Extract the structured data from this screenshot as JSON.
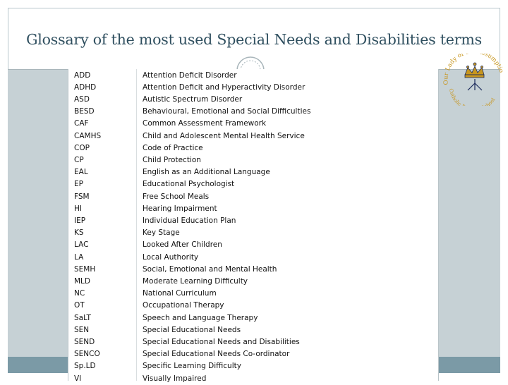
{
  "slide": {
    "title": "Glossary of the most used Special Needs and Disabilities terms"
  },
  "logo": {
    "text_top": "Our Lady of the Assumption",
    "text_bottom": "Catholic Primary School",
    "accent": "#c8961e"
  },
  "glossary": [
    {
      "abbr": "ADD",
      "term": "Attention Deficit Disorder"
    },
    {
      "abbr": "ADHD",
      "term": "Attention Deficit and Hyperactivity Disorder"
    },
    {
      "abbr": "ASD",
      "term": "Autistic Spectrum Disorder"
    },
    {
      "abbr": "BESD",
      "term": "Behavioural, Emotional and Social Difficulties"
    },
    {
      "abbr": "CAF",
      "term": "Common Assessment Framework"
    },
    {
      "abbr": "CAMHS",
      "term": "Child and Adolescent Mental Health Service"
    },
    {
      "abbr": "COP",
      "term": "Code of Practice"
    },
    {
      "abbr": "CP",
      "term": "Child Protection"
    },
    {
      "abbr": "EAL",
      "term": "English as an Additional Language"
    },
    {
      "abbr": "EP",
      "term": "Educational Psychologist"
    },
    {
      "abbr": "FSM",
      "term": "Free School Meals"
    },
    {
      "abbr": "HI",
      "term": "Hearing Impairment"
    },
    {
      "abbr": "IEP",
      "term": "Individual Education Plan"
    },
    {
      "abbr": "KS",
      "term": "Key Stage"
    },
    {
      "abbr": "LAC",
      "term": "Looked After Children"
    },
    {
      "abbr": "LA",
      "term": "Local Authority"
    },
    {
      "abbr": "SEMH",
      "term": "Social, Emotional and Mental Health"
    },
    {
      "abbr": "MLD",
      "term": "Moderate Learning Difficulty"
    },
    {
      "abbr": "NC",
      "term": "National Curriculum"
    },
    {
      "abbr": "OT",
      "term": "Occupational Therapy"
    },
    {
      "abbr": "SaLT",
      "term": "Speech and Language Therapy"
    },
    {
      "abbr": "SEN",
      "term": "Special Educational Needs"
    },
    {
      "abbr": "SEND",
      "term": "Special Educational Needs and Disabilities"
    },
    {
      "abbr": "SENCO",
      "term": "Special Educational Needs Co-ordinator"
    },
    {
      "abbr": "Sp.LD",
      "term": "Specific Learning Difficulty"
    },
    {
      "abbr": "VI",
      "term": "Visually Impaired"
    }
  ]
}
